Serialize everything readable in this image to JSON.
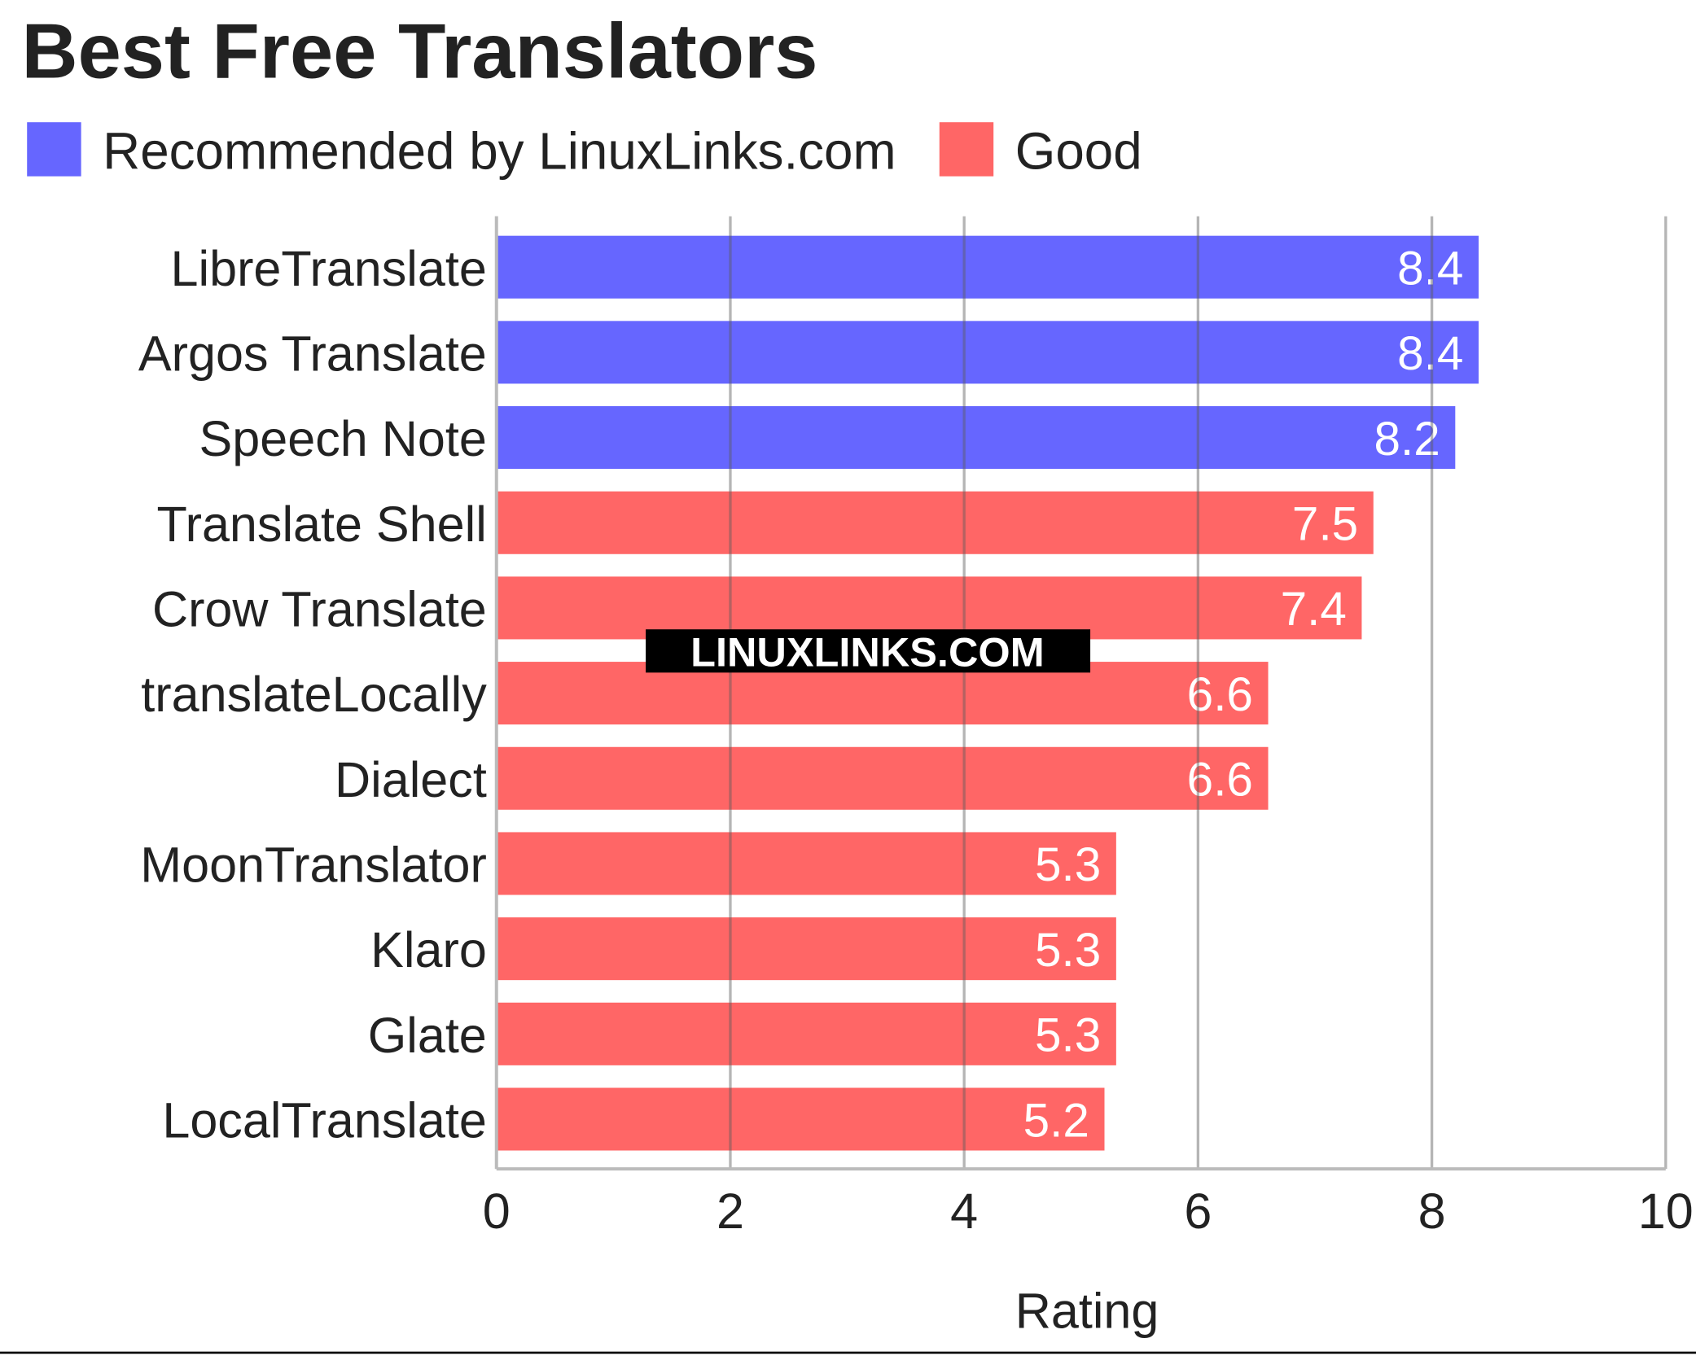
{
  "chart_data": {
    "type": "hbar",
    "title": "Best Free Translators",
    "categories": [
      "LibreTranslate",
      "Argos Translate",
      "Speech Note",
      "Translate Shell",
      "Crow Translate",
      "translateLocally",
      "Dialect",
      "MoonTranslator",
      "Klaro",
      "Glate",
      "LocalTranslate"
    ],
    "series": [
      {
        "name": "Recommended by LinuxLinks.com",
        "color": "#6666ff",
        "values": [
          8.4,
          8.4,
          8.2,
          null,
          null,
          null,
          null,
          null,
          null,
          null,
          null
        ]
      },
      {
        "name": "Good",
        "color": "#ff6666",
        "values": [
          null,
          null,
          null,
          7.5,
          7.4,
          6.6,
          6.6,
          5.3,
          5.3,
          5.3,
          5.2
        ]
      }
    ],
    "xlabel": "Rating",
    "xlim": [
      0,
      10
    ],
    "xticks": [
      0,
      2,
      4,
      6,
      8,
      10
    ],
    "grid": true,
    "annotation": "LINUXLINKS.COM"
  }
}
